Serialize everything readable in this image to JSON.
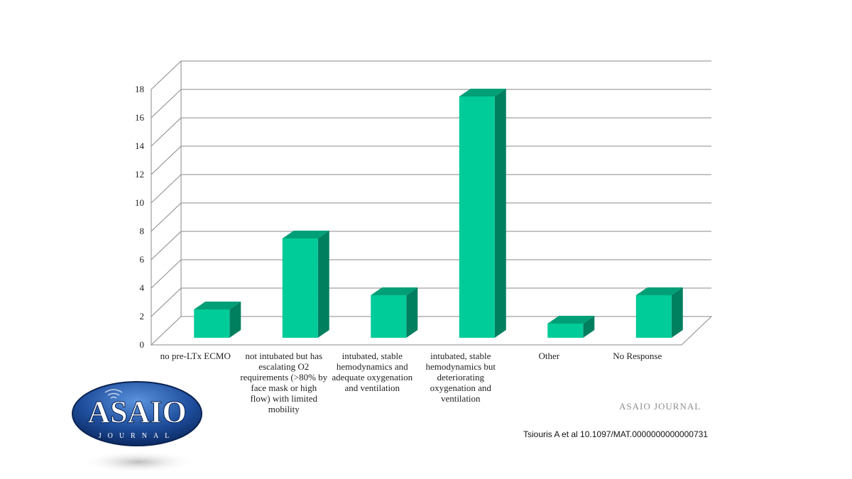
{
  "chart_data": {
    "type": "bar",
    "style": "3d-column",
    "title": "",
    "xlabel": "",
    "ylabel": "",
    "ylim": [
      0,
      18
    ],
    "y_ticks": [
      0,
      2,
      4,
      6,
      8,
      10,
      12,
      14,
      16,
      18
    ],
    "grid": true,
    "categories": [
      "no pre-LTx ECMO",
      "not intubated but has escalating O2 requirements (>80% by face mask or high flow) with limited mobility",
      "intubated, stable hemodynamics and adequate oxygenation and ventilation",
      "intubated, stable hemodynamics but deteriorating oxygenation and ventilation",
      "Other",
      "No Response"
    ],
    "values": [
      2,
      7,
      3,
      17,
      1,
      3
    ],
    "colors": {
      "front": "#00cc99",
      "top": "#009f77",
      "side": "#007f5f",
      "grid": "#8a8a8a"
    }
  },
  "logo": {
    "text": "ASAIO",
    "subtext": "JOURNAL",
    "colors": {
      "dark": "#0e2f6b",
      "light": "#3f79c8"
    }
  },
  "journal_mark": "ASAIO JOURNAL",
  "citation": "Tsiouris A et al 10.1097/MAT.0000000000000731"
}
